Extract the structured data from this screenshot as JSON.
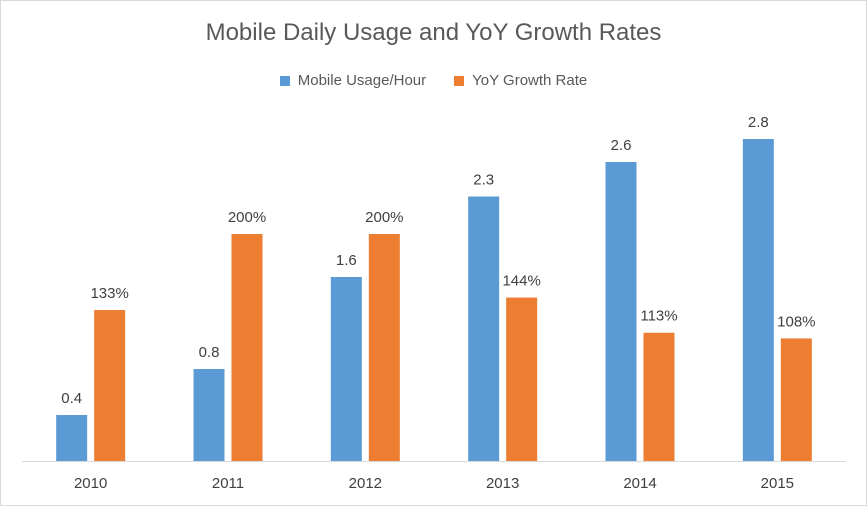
{
  "chart_data": {
    "type": "bar",
    "title": "Mobile Daily Usage and YoY Growth Rates",
    "categories": [
      "2010",
      "2011",
      "2012",
      "2013",
      "2014",
      "2015"
    ],
    "series": [
      {
        "name": "Mobile Usage/Hour",
        "color": "#5b9bd5",
        "values": [
          0.4,
          0.8,
          1.6,
          2.3,
          2.6,
          2.8
        ],
        "labels": [
          "0.4",
          "0.8",
          "1.6",
          "2.3",
          "2.6",
          "2.8"
        ]
      },
      {
        "name": "YoY Growth Rate",
        "color": "#ed7d31",
        "values": [
          133,
          200,
          200,
          144,
          113,
          108
        ],
        "labels": [
          "133%",
          "200%",
          "200%",
          "144%",
          "113%",
          "108%"
        ]
      }
    ],
    "grid": false,
    "legend_position": "top"
  }
}
